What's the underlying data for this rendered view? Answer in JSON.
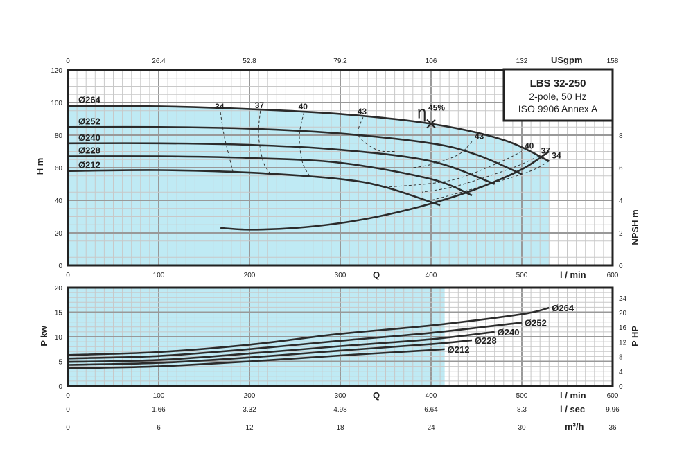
{
  "chart_data": [
    {
      "type": "line",
      "panel": "head",
      "title": "LBS 32-250",
      "subtitle_lines": [
        "2-pole, 50 Hz",
        "ISO 9906 Annex A"
      ],
      "ylabel": "H m",
      "y2label": "NPSH m",
      "xlabel": "Q",
      "xunit": "l / min",
      "top_axis_unit": "USgpm",
      "xlim": [
        0,
        600
      ],
      "ylim": [
        0,
        120
      ],
      "y2lim": [
        0,
        10
      ],
      "grid": true,
      "x_ticks": [
        "0",
        "100",
        "200",
        "300",
        "400",
        "500",
        "600"
      ],
      "y_ticks": [
        "0",
        "20",
        "40",
        "60",
        "80",
        "100",
        "120"
      ],
      "y2_ticks": [
        "0",
        "2",
        "4",
        "6",
        "8"
      ],
      "top_ticks": [
        "0",
        "26.4",
        "52.8",
        "79.2",
        "106",
        "132",
        "158"
      ],
      "operating_range": [
        0,
        530
      ],
      "series": [
        {
          "name": "Ø264",
          "x": [
            0,
            100,
            200,
            300,
            400,
            480,
            530
          ],
          "y": [
            98,
            97.7,
            96,
            93,
            87,
            77,
            64
          ]
        },
        {
          "name": "Ø252",
          "x": [
            0,
            100,
            200,
            300,
            400,
            450,
            500
          ],
          "y": [
            85,
            85,
            84,
            81,
            75,
            68,
            56
          ]
        },
        {
          "name": "Ø240",
          "x": [
            0,
            100,
            200,
            300,
            400,
            470
          ],
          "y": [
            75,
            75,
            74,
            71,
            64,
            50
          ]
        },
        {
          "name": "Ø228",
          "x": [
            0,
            100,
            200,
            300,
            400,
            445
          ],
          "y": [
            67,
            67,
            66,
            63,
            53,
            43
          ]
        },
        {
          "name": "Ø212",
          "x": [
            0,
            100,
            200,
            300,
            350,
            410
          ],
          "y": [
            58,
            58.5,
            57,
            53,
            48,
            37
          ]
        },
        {
          "name": "NPSH",
          "axis": "y2",
          "x": [
            168,
            200,
            250,
            300,
            350,
            400,
            450,
            500,
            530
          ],
          "y": [
            2.3,
            2.2,
            2.3,
            2.6,
            3.1,
            3.8,
            4.7,
            5.9,
            7.0
          ]
        }
      ],
      "efficiency_iso_curves": [
        {
          "label": "34",
          "pts": [
            [
              168,
              94
            ],
            [
              172,
              80
            ],
            [
              178,
              66
            ],
            [
              182,
              57
            ]
          ]
        },
        {
          "label": "37",
          "pts": [
            [
              212,
              95
            ],
            [
              210,
              80
            ],
            [
              215,
              64
            ],
            [
              222,
              57
            ]
          ]
        },
        {
          "label": "40",
          "pts": [
            [
              260,
              94
            ],
            [
              255,
              80
            ],
            [
              258,
              64
            ],
            [
              266,
              55
            ]
          ]
        },
        {
          "label": "43",
          "pts": [
            [
              325,
              91
            ],
            [
              320,
              80
            ],
            [
              340,
              71
            ],
            [
              360,
              70
            ]
          ]
        },
        {
          "label": "43",
          "pts": [
            [
              445,
              76
            ],
            [
              430,
              68
            ],
            [
              400,
              62
            ],
            [
              380,
              60
            ]
          ]
        },
        {
          "label": "40",
          "pts": [
            [
              500,
              70
            ],
            [
              470,
              62
            ],
            [
              420,
              52
            ],
            [
              350,
              48
            ]
          ]
        },
        {
          "label": "37",
          "pts": [
            [
              518,
              67
            ],
            [
              490,
              60
            ],
            [
              430,
              49
            ],
            [
              390,
              45
            ]
          ]
        },
        {
          "label": "34",
          "pts": [
            [
              530,
              64
            ],
            [
              505,
              57
            ],
            [
              440,
              46
            ],
            [
              400,
              40
            ]
          ]
        }
      ],
      "best_efficiency": {
        "label": "45%",
        "symbol": "η",
        "x": 400,
        "y": 87
      }
    },
    {
      "type": "line",
      "panel": "power",
      "ylabel": "P kw",
      "y2label": "P HP",
      "xlabel": "Q",
      "xunit": "l / min",
      "xlim": [
        0,
        600
      ],
      "ylim": [
        0,
        20
      ],
      "y2lim": [
        0,
        26.8
      ],
      "grid": true,
      "x_ticks": [
        "0",
        "100",
        "200",
        "300",
        "400",
        "500",
        "600"
      ],
      "y_ticks": [
        "0",
        "5",
        "10",
        "15",
        "20"
      ],
      "y2_ticks": [
        "0",
        "4",
        "8",
        "12",
        "16",
        "20",
        "24"
      ],
      "secondary_x_axes": [
        {
          "unit": "l / sec",
          "ticks": [
            "0",
            "1.66",
            "3.32",
            "4.98",
            "6.64",
            "8.3",
            "9.96"
          ]
        },
        {
          "unit": "m³/h",
          "ticks": [
            "0",
            "6",
            "12",
            "18",
            "24",
            "30",
            "36"
          ]
        }
      ],
      "operating_range": [
        0,
        415
      ],
      "series": [
        {
          "name": "Ø264",
          "x": [
            0,
            100,
            200,
            300,
            400,
            500,
            530
          ],
          "y": [
            6.3,
            6.9,
            8.4,
            10.6,
            12.3,
            14.6,
            15.9
          ]
        },
        {
          "name": "Ø252",
          "x": [
            0,
            100,
            200,
            300,
            400,
            500
          ],
          "y": [
            5.6,
            6.1,
            7.5,
            9.2,
            10.8,
            12.9
          ]
        },
        {
          "name": "Ø240",
          "x": [
            0,
            100,
            200,
            300,
            400,
            470
          ],
          "y": [
            4.9,
            5.3,
            6.6,
            8.1,
            9.5,
            11.0
          ]
        },
        {
          "name": "Ø228",
          "x": [
            0,
            100,
            200,
            300,
            400,
            445
          ],
          "y": [
            4.3,
            4.7,
            5.8,
            7.2,
            8.5,
            9.3
          ]
        },
        {
          "name": "Ø212",
          "x": [
            0,
            100,
            200,
            300,
            400,
            415
          ],
          "y": [
            3.6,
            4.0,
            5.0,
            6.2,
            7.3,
            7.5
          ]
        }
      ]
    }
  ],
  "colors": {
    "fill": "#bfeaf4",
    "frame": "#222222",
    "grid_major": "#999999",
    "grid_minor": "#c8c8c8"
  }
}
